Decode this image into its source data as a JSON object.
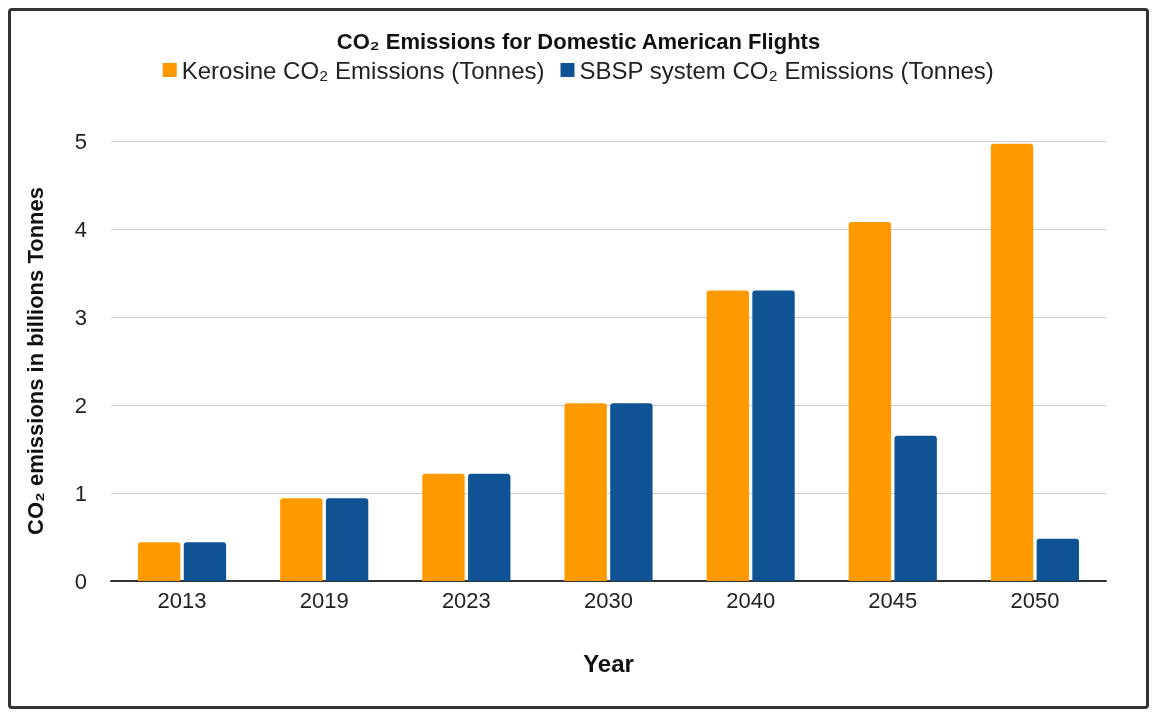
{
  "chart_data": {
    "type": "bar",
    "title": "CO₂ Emissions for Domestic American Flights",
    "xlabel": "Year",
    "ylabel": "CO₂ emissions in billions Tonnes",
    "categories": [
      "2013",
      "2019",
      "2023",
      "2030",
      "2040",
      "2045",
      "2050"
    ],
    "series": [
      {
        "name": "Kerosine CO₂ Emissions (Tonnes)",
        "color": "#ff9900",
        "values": [
          0.44,
          0.94,
          1.22,
          2.02,
          3.3,
          4.08,
          4.97
        ]
      },
      {
        "name": "SBSP system CO₂ Emissions (Tonnes)",
        "color": "#0f5394",
        "values": [
          0.44,
          0.94,
          1.22,
          2.02,
          3.3,
          1.65,
          0.48
        ]
      }
    ],
    "ylim": [
      0,
      5
    ],
    "yticks": [
      0,
      1,
      2,
      3,
      4,
      5
    ],
    "grid": "y",
    "legend": "top"
  }
}
